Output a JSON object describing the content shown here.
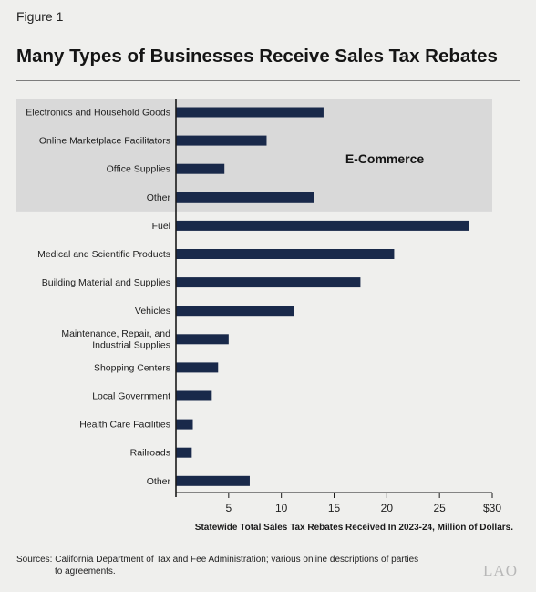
{
  "figure_label": "Figure 1",
  "logo_text": "LAO",
  "sources_label": "Sources:",
  "sources_text": "California Department of Tax and Fee Administration; various online descriptions of parties",
  "sources_text_cont": "to agreements.",
  "colors": {
    "bar": "#19294a",
    "highlight": "#d9d9d9",
    "background": "#efefed",
    "axis": "#1a1a1a"
  },
  "chart_data": {
    "type": "bar",
    "orientation": "horizontal",
    "title": "Many Types of Businesses Receive Sales Tax Rebates",
    "xlabel": "Statewide Total Sales Tax Rebates Received In 2023-24, Million of Dollars.",
    "ylabel": "",
    "xlim": [
      0,
      30
    ],
    "tick_labels": [
      "5",
      "10",
      "15",
      "20",
      "25",
      "$30"
    ],
    "tick_values": [
      5,
      10,
      15,
      20,
      25,
      30
    ],
    "grid": false,
    "categories": [
      [
        "Electronics and Household Goods"
      ],
      [
        "Online Marketplace Facilitators"
      ],
      [
        "Office Supplies"
      ],
      [
        "Other"
      ],
      [
        "Fuel"
      ],
      [
        "Medical and Scientific Products"
      ],
      [
        "Building Material and Supplies"
      ],
      [
        "Vehicles"
      ],
      [
        "Maintenance, Repair, and",
        "Industrial Supplies"
      ],
      [
        "Shopping Centers"
      ],
      [
        "Local Government"
      ],
      [
        "Health Care Facilities"
      ],
      [
        "Railroads"
      ],
      [
        "Other"
      ]
    ],
    "values": [
      14.0,
      8.6,
      4.6,
      13.1,
      27.8,
      20.7,
      17.5,
      11.2,
      5.0,
      4.0,
      3.4,
      1.6,
      1.5,
      7.0
    ],
    "highlight": {
      "label": "E-Commerce",
      "from_index": 0,
      "to_index": 3
    }
  }
}
